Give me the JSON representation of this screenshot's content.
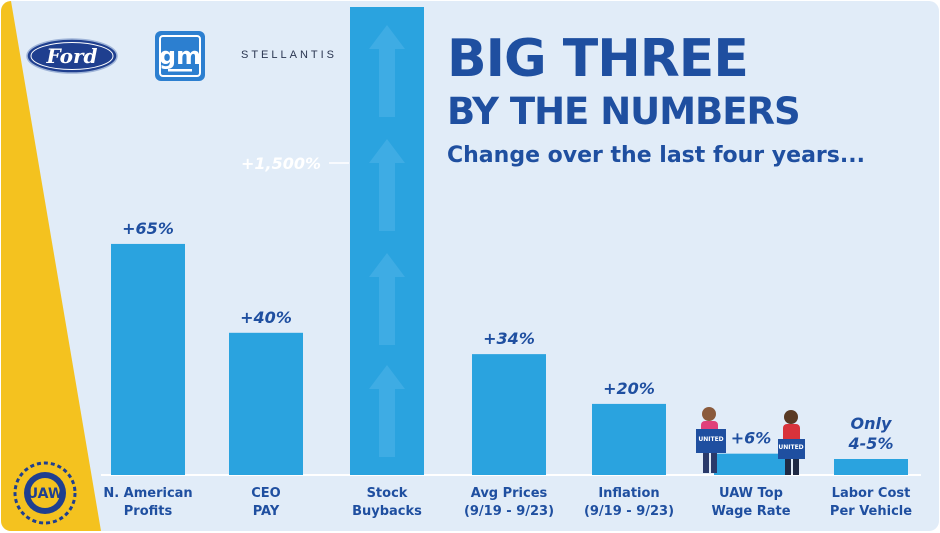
{
  "title_line1": "BIG THREE",
  "title_line2": "BY THE NUMBERS",
  "subtitle": "Change over the last four years...",
  "logos": {
    "ford": "Ford",
    "gm": "gm",
    "stellantis": "STELLANTIS",
    "uaw": "UAW"
  },
  "sign_text": "UNITED",
  "colors": {
    "background": "#e1ecf8",
    "bar": "#2aa3df",
    "text": "#1f4fa0",
    "accent": "#f4c21f"
  },
  "chart_data": {
    "type": "bar",
    "title": "BIG THREE BY THE NUMBERS",
    "subtitle": "Change over the last four years...",
    "xlabel": "",
    "ylabel": "",
    "categories": [
      [
        "N. American",
        "Profits"
      ],
      [
        "CEO",
        "PAY"
      ],
      [
        "Stock",
        "Buybacks"
      ],
      [
        "Avg Prices",
        "(9/19 - 9/23)"
      ],
      [
        "Inflation",
        "(9/19 - 9/23)"
      ],
      [
        "UAW Top",
        "Wage Rate"
      ],
      [
        "Labor Cost",
        "Per Vehicle"
      ]
    ],
    "values": [
      65,
      40,
      1500,
      34,
      20,
      6,
      4.5
    ],
    "value_labels": [
      [
        "+65%"
      ],
      [
        "+40%"
      ],
      [
        "+1,500%"
      ],
      [
        "+34%"
      ],
      [
        "+20%"
      ],
      [
        "+6%"
      ],
      [
        "Only",
        "4-5%"
      ]
    ],
    "unit": "%",
    "grid": false,
    "legend": "none"
  }
}
